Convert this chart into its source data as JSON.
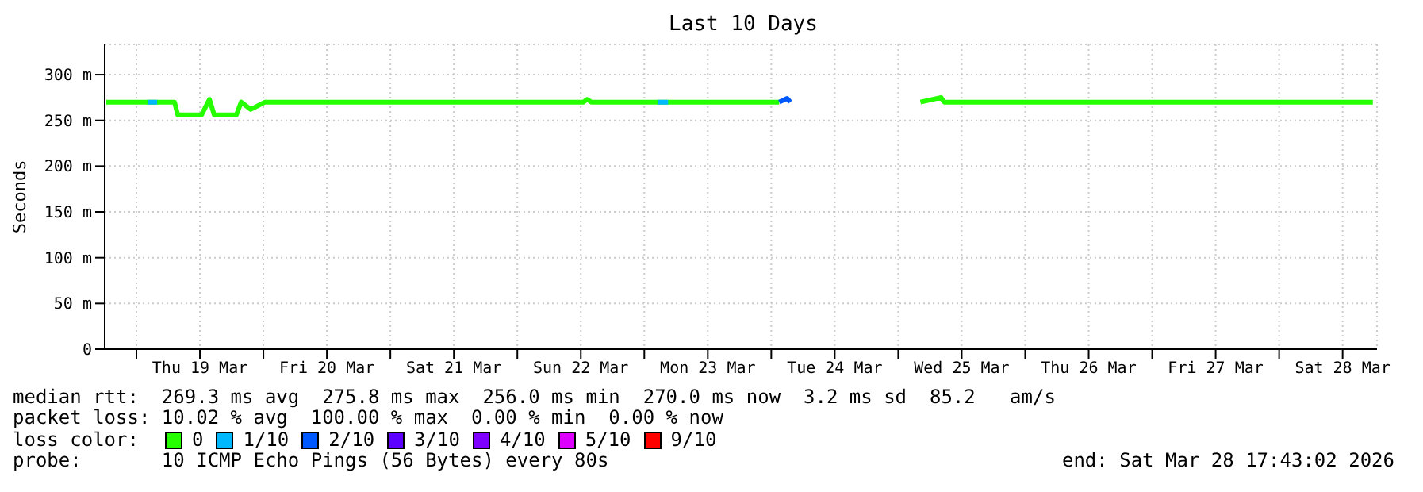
{
  "chart_data": {
    "type": "line",
    "title": "Last 10 Days",
    "ylabel": "Seconds",
    "legend_title": "loss color:",
    "legend": "bottom",
    "grid": true,
    "marker": "none",
    "line_style": "solid",
    "annotations": [
      "median rtt:  269.3 ms avg  275.8 ms max  256.0 ms min  270.0 ms now  3.2 ms sd  85.2   am/s",
      "packet loss: 10.02 % avg  100.00 % max  0.00 % min  0.00 % now",
      "probe:       10 ICMP Echo Pings (56 Bytes) every 80s",
      "end: Sat Mar 28 17:43:02 2026"
    ],
    "xlim": [
      "2026-03-18T18:00",
      "2026-03-28T18:30"
    ],
    "xticks": [
      {
        "value": "2026-03-19",
        "label": null
      },
      {
        "value": "2026-03-19T12:00",
        "label": "Thu 19 Mar"
      },
      {
        "value": "2026-03-20",
        "label": null
      },
      {
        "value": "2026-03-20T12:00",
        "label": "Fri 20 Mar"
      },
      {
        "value": "2026-03-21",
        "label": null
      },
      {
        "value": "2026-03-21T12:00",
        "label": "Sat 21 Mar"
      },
      {
        "value": "2026-03-22",
        "label": null
      },
      {
        "value": "2026-03-22T12:00",
        "label": "Sun 22 Mar"
      },
      {
        "value": "2026-03-23",
        "label": null
      },
      {
        "value": "2026-03-23T12:00",
        "label": "Mon 23 Mar"
      },
      {
        "value": "2026-03-24",
        "label": null
      },
      {
        "value": "2026-03-24T12:00",
        "label": "Tue 24 Mar"
      },
      {
        "value": "2026-03-25",
        "label": null
      },
      {
        "value": "2026-03-25T12:00",
        "label": "Wed 25 Mar"
      },
      {
        "value": "2026-03-26",
        "label": null
      },
      {
        "value": "2026-03-26T12:00",
        "label": "Thu 26 Mar"
      },
      {
        "value": "2026-03-27",
        "label": null
      },
      {
        "value": "2026-03-27T12:00",
        "label": "Fri 27 Mar"
      },
      {
        "value": "2026-03-28",
        "label": null
      },
      {
        "value": "2026-03-28T12:00",
        "label": "Sat 28 Mar"
      }
    ],
    "ylim": [
      0,
      333
    ],
    "yticks": [
      0,
      {
        "value": 50,
        "label": "50 m"
      },
      {
        "value": 100,
        "label": "100 m"
      },
      {
        "value": 150,
        "label": "150 m"
      },
      {
        "value": 200,
        "label": "200 m"
      },
      {
        "value": 250,
        "label": "250 m"
      },
      {
        "value": 300,
        "label": "300 m"
      }
    ],
    "x": [
      "2026-03-18T18:18",
      "2026-03-19T02:06",
      "2026-03-19T03:54",
      "2026-03-19T07:12",
      "2026-03-19T07:48",
      "2026-03-19T12:18",
      "2026-03-19T13:48",
      "2026-03-19T14:42",
      "2026-03-19T18:54",
      "2026-03-19T19:48",
      "2026-03-19T21:36",
      "2026-03-20T00:18",
      "2026-03-22T12:30",
      "2026-03-22T13:12",
      "2026-03-22T14:00",
      "2026-03-23T02:30",
      "2026-03-23T04:30",
      "2026-03-24T01:30",
      "2026-03-24T03:00",
      "2026-03-24T03:36",
      "2026-03-24T05:00",
      "2026-03-25T04:12",
      "2026-03-25T08:06",
      "2026-03-25T08:42",
      "2026-03-28T17:43"
    ],
    "series": [
      {
        "name": "0",
        "color": "#26ff00",
        "values": [
          270,
          270,
          270,
          270,
          256,
          256,
          273,
          256,
          256,
          270,
          262,
          270,
          270,
          273,
          270,
          270,
          270,
          270,
          null,
          null,
          null,
          270,
          275,
          270,
          270
        ]
      },
      {
        "name": "1/10",
        "color": "#00b8ff",
        "values": [
          null,
          270,
          270,
          null,
          null,
          null,
          null,
          null,
          null,
          null,
          null,
          null,
          null,
          null,
          null,
          270,
          270,
          null,
          null,
          null,
          null,
          null,
          null,
          null,
          null
        ]
      },
      {
        "name": "2/10",
        "color": "#0059ff",
        "values": [
          null,
          null,
          null,
          null,
          null,
          null,
          null,
          null,
          null,
          null,
          null,
          null,
          null,
          null,
          null,
          null,
          null,
          270,
          274,
          270,
          null,
          null,
          null,
          null,
          null
        ]
      },
      {
        "name": "3/10",
        "color": "#5e00ff",
        "values": [
          null,
          null,
          null,
          null,
          null,
          null,
          null,
          null,
          null,
          null,
          null,
          null,
          null,
          null,
          null,
          null,
          null,
          null,
          null,
          null,
          null,
          null,
          null,
          null,
          null
        ]
      },
      {
        "name": "4/10",
        "color": "#7e00ff",
        "values": [
          null,
          null,
          null,
          null,
          null,
          null,
          null,
          null,
          null,
          null,
          null,
          null,
          null,
          null,
          null,
          null,
          null,
          null,
          null,
          null,
          null,
          null,
          null,
          null,
          null
        ]
      },
      {
        "name": "5/10",
        "color": "#dd00ff",
        "values": [
          null,
          null,
          null,
          null,
          null,
          null,
          null,
          null,
          null,
          null,
          null,
          null,
          null,
          null,
          null,
          null,
          null,
          null,
          null,
          null,
          null,
          null,
          null,
          null,
          null
        ]
      },
      {
        "name": "9/10",
        "color": "#ff0000",
        "values": [
          null,
          null,
          null,
          null,
          null,
          null,
          null,
          null,
          null,
          null,
          null,
          null,
          null,
          null,
          null,
          null,
          null,
          null,
          null,
          null,
          null,
          null,
          null,
          null,
          null
        ]
      }
    ]
  }
}
